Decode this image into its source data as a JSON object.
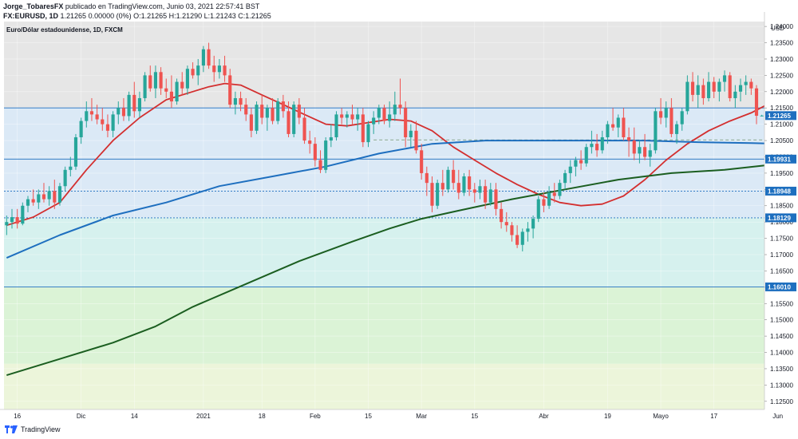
{
  "header": {
    "author": "Jorge_TobaresFX",
    "published": "publicado en TradingView.com, Junio 03, 2021 22:57:41 BST",
    "symbol": "FX:EURUSD, 1D",
    "quote": "1.21265 0.00000 (0%) O:1.21265 H:1.21290 L:1.21243 C:1.21265"
  },
  "footer": {
    "brand": "TradingView"
  },
  "colors": {
    "up": "#26a69a",
    "down": "#ef5350",
    "ema_red": "#d32f2f",
    "ma_blue": "#1e6fbf",
    "ma_green": "#1b5e20",
    "zone_grey": "#e6e6e6",
    "zone_blue": "#dbe9f6",
    "zone_teal": "#d6f1ee",
    "zone_green": "#dbf3d6",
    "zone_yellow": "#ecf5da"
  },
  "chart_data": {
    "type": "candlestick",
    "title": "Euro/Dólar estadounidense, 1D, FXCM",
    "y_axis_title": "USD",
    "ylim": [
      1.1225,
      1.2415
    ],
    "y_ticks": [
      1.125,
      1.13,
      1.135,
      1.14,
      1.145,
      1.15,
      1.155,
      1.16,
      1.165,
      1.17,
      1.175,
      1.18,
      1.185,
      1.19,
      1.195,
      1.2,
      1.205,
      1.21,
      1.215,
      1.22,
      1.225,
      1.23,
      1.235,
      1.24
    ],
    "y_tick_labels": [
      "1.12500",
      "1.13000",
      "1.13500",
      "1.14000",
      "1.14500",
      "1.15000",
      "1.15500",
      "1.16000",
      "1.16500",
      "1.17000",
      "1.17500",
      "1.18000",
      "1.18500",
      "1.19000",
      "1.19500",
      "1.20000",
      "1.20500",
      "1.21000",
      "1.21500",
      "1.22000",
      "1.22500",
      "1.23000",
      "1.23500",
      "1.24000"
    ],
    "x_ticks": [
      {
        "label": "16",
        "i": 2
      },
      {
        "label": "Dic",
        "i": 14
      },
      {
        "label": "14",
        "i": 24
      },
      {
        "label": "2021",
        "i": 37
      },
      {
        "label": "18",
        "i": 48
      },
      {
        "label": "Feb",
        "i": 58
      },
      {
        "label": "15",
        "i": 68
      },
      {
        "label": "Mar",
        "i": 78
      },
      {
        "label": "15",
        "i": 88
      },
      {
        "label": "Abr",
        "i": 101
      },
      {
        "label": "19",
        "i": 113
      },
      {
        "label": "Mayo",
        "i": 123
      },
      {
        "label": "17",
        "i": 133
      },
      {
        "label": "Jun",
        "i": 145
      }
    ],
    "zones": [
      {
        "from": 1.215,
        "to": 1.2415,
        "color": "zone_grey"
      },
      {
        "from": 1.1813,
        "to": 1.215,
        "color": "zone_blue"
      },
      {
        "from": 1.1601,
        "to": 1.1813,
        "color": "zone_teal"
      },
      {
        "from": 1.1365,
        "to": 1.1601,
        "color": "zone_green"
      },
      {
        "from": 1.1225,
        "to": 1.1365,
        "color": "zone_yellow"
      }
    ],
    "hlines": [
      {
        "y": 1.215,
        "style": "solid"
      },
      {
        "y": 1.19931,
        "style": "solid",
        "label": "1.19931"
      },
      {
        "y": 1.18948,
        "style": "dotted",
        "label": "1.18948"
      },
      {
        "y": 1.18129,
        "style": "dotted",
        "label": "1.18129"
      },
      {
        "y": 1.1601,
        "style": "solid",
        "label": "1.16010"
      },
      {
        "y": 1.2052,
        "style": "dashed",
        "from_i": 69,
        "to_i": 146
      }
    ],
    "last_price": {
      "value": 1.21265,
      "label": "1.21265"
    },
    "candles": [
      [
        1.179,
        1.182,
        1.176,
        1.18
      ],
      [
        1.18,
        1.184,
        1.178,
        1.1815
      ],
      [
        1.1815,
        1.184,
        1.178,
        1.1795
      ],
      [
        1.1795,
        1.186,
        1.179,
        1.185
      ],
      [
        1.185,
        1.188,
        1.183,
        1.187
      ],
      [
        1.187,
        1.19,
        1.185,
        1.186
      ],
      [
        1.186,
        1.19,
        1.184,
        1.1885
      ],
      [
        1.1885,
        1.192,
        1.186,
        1.187
      ],
      [
        1.187,
        1.191,
        1.185,
        1.1895
      ],
      [
        1.1895,
        1.193,
        1.184,
        1.186
      ],
      [
        1.186,
        1.192,
        1.185,
        1.191
      ],
      [
        1.191,
        1.197,
        1.1895,
        1.196
      ],
      [
        1.196,
        1.2,
        1.194,
        1.197
      ],
      [
        1.197,
        1.207,
        1.196,
        1.206
      ],
      [
        1.206,
        1.212,
        1.204,
        1.211
      ],
      [
        1.211,
        1.217,
        1.209,
        1.214
      ],
      [
        1.214,
        1.218,
        1.211,
        1.213
      ],
      [
        1.213,
        1.216,
        1.21,
        1.2115
      ],
      [
        1.2115,
        1.215,
        1.208,
        1.21
      ],
      [
        1.21,
        1.213,
        1.206,
        1.208
      ],
      [
        1.208,
        1.214,
        1.206,
        1.213
      ],
      [
        1.213,
        1.217,
        1.21,
        1.215
      ],
      [
        1.215,
        1.218,
        1.211,
        1.2125
      ],
      [
        1.2125,
        1.22,
        1.211,
        1.219
      ],
      [
        1.219,
        1.223,
        1.212,
        1.214
      ],
      [
        1.214,
        1.22,
        1.212,
        1.218
      ],
      [
        1.218,
        1.226,
        1.217,
        1.225
      ],
      [
        1.225,
        1.228,
        1.22,
        1.221
      ],
      [
        1.221,
        1.228,
        1.218,
        1.226
      ],
      [
        1.226,
        1.2275,
        1.219,
        1.221
      ],
      [
        1.221,
        1.224,
        1.218,
        1.22
      ],
      [
        1.22,
        1.225,
        1.215,
        1.217
      ],
      [
        1.217,
        1.224,
        1.216,
        1.223
      ],
      [
        1.223,
        1.226,
        1.219,
        1.221
      ],
      [
        1.221,
        1.228,
        1.219,
        1.227
      ],
      [
        1.227,
        1.229,
        1.224,
        1.225
      ],
      [
        1.225,
        1.23,
        1.222,
        1.228
      ],
      [
        1.228,
        1.234,
        1.226,
        1.233
      ],
      [
        1.233,
        1.235,
        1.227,
        1.228
      ],
      [
        1.228,
        1.231,
        1.223,
        1.226
      ],
      [
        1.226,
        1.23,
        1.224,
        1.228
      ],
      [
        1.228,
        1.231,
        1.223,
        1.225
      ],
      [
        1.225,
        1.227,
        1.215,
        1.216
      ],
      [
        1.216,
        1.22,
        1.213,
        1.218
      ],
      [
        1.218,
        1.22,
        1.214,
        1.216
      ],
      [
        1.216,
        1.218,
        1.211,
        1.213
      ],
      [
        1.213,
        1.215,
        1.206,
        1.208
      ],
      [
        1.208,
        1.217,
        1.207,
        1.216
      ],
      [
        1.216,
        1.219,
        1.21,
        1.212
      ],
      [
        1.212,
        1.216,
        1.208,
        1.215
      ],
      [
        1.215,
        1.218,
        1.21,
        1.211
      ],
      [
        1.211,
        1.218,
        1.21,
        1.217
      ],
      [
        1.217,
        1.219,
        1.212,
        1.214
      ],
      [
        1.214,
        1.217,
        1.206,
        1.207
      ],
      [
        1.207,
        1.217,
        1.206,
        1.216
      ],
      [
        1.216,
        1.218,
        1.21,
        1.212
      ],
      [
        1.212,
        1.215,
        1.204,
        1.205
      ],
      [
        1.205,
        1.208,
        1.201,
        1.204
      ],
      [
        1.204,
        1.206,
        1.197,
        1.199
      ],
      [
        1.199,
        1.202,
        1.195,
        1.196
      ],
      [
        1.196,
        1.206,
        1.195,
        1.205
      ],
      [
        1.205,
        1.21,
        1.203,
        1.206
      ],
      [
        1.206,
        1.214,
        1.205,
        1.213
      ],
      [
        1.213,
        1.215,
        1.21,
        1.212
      ],
      [
        1.212,
        1.214,
        1.209,
        1.213
      ],
      [
        1.213,
        1.216,
        1.21,
        1.2115
      ],
      [
        1.2115,
        1.215,
        1.208,
        1.213
      ],
      [
        1.213,
        1.215,
        1.203,
        1.2045
      ],
      [
        1.2045,
        1.211,
        1.203,
        1.21
      ],
      [
        1.21,
        1.214,
        1.207,
        1.212
      ],
      [
        1.212,
        1.216,
        1.21,
        1.215
      ],
      [
        1.215,
        1.216,
        1.21,
        1.211
      ],
      [
        1.211,
        1.217,
        1.209,
        1.213
      ],
      [
        1.213,
        1.22,
        1.211,
        1.216
      ],
      [
        1.216,
        1.224,
        1.213,
        1.215
      ],
      [
        1.215,
        1.217,
        1.203,
        1.206
      ],
      [
        1.206,
        1.21,
        1.203,
        1.208
      ],
      [
        1.208,
        1.211,
        1.201,
        1.202
      ],
      [
        1.202,
        1.204,
        1.193,
        1.195
      ],
      [
        1.195,
        1.197,
        1.188,
        1.192
      ],
      [
        1.192,
        1.194,
        1.183,
        1.185
      ],
      [
        1.185,
        1.193,
        1.184,
        1.192
      ],
      [
        1.192,
        1.196,
        1.188,
        1.19
      ],
      [
        1.19,
        1.197,
        1.189,
        1.196
      ],
      [
        1.196,
        1.199,
        1.19,
        1.192
      ],
      [
        1.192,
        1.196,
        1.187,
        1.189
      ],
      [
        1.189,
        1.195,
        1.188,
        1.194
      ],
      [
        1.194,
        1.196,
        1.188,
        1.19
      ],
      [
        1.19,
        1.192,
        1.186,
        1.189
      ],
      [
        1.189,
        1.193,
        1.187,
        1.191
      ],
      [
        1.191,
        1.193,
        1.184,
        1.186
      ],
      [
        1.186,
        1.192,
        1.185,
        1.19
      ],
      [
        1.19,
        1.192,
        1.182,
        1.184
      ],
      [
        1.184,
        1.186,
        1.178,
        1.18
      ],
      [
        1.18,
        1.183,
        1.177,
        1.179
      ],
      [
        1.179,
        1.18,
        1.174,
        1.176
      ],
      [
        1.176,
        1.179,
        1.172,
        1.173
      ],
      [
        1.173,
        1.178,
        1.171,
        1.177
      ],
      [
        1.177,
        1.18,
        1.174,
        1.178
      ],
      [
        1.178,
        1.182,
        1.175,
        1.181
      ],
      [
        1.181,
        1.188,
        1.18,
        1.187
      ],
      [
        1.187,
        1.189,
        1.183,
        1.185
      ],
      [
        1.185,
        1.191,
        1.184,
        1.189
      ],
      [
        1.189,
        1.192,
        1.186,
        1.188
      ],
      [
        1.188,
        1.193,
        1.187,
        1.192
      ],
      [
        1.192,
        1.196,
        1.19,
        1.195
      ],
      [
        1.195,
        1.199,
        1.192,
        1.197
      ],
      [
        1.197,
        1.2,
        1.194,
        1.199
      ],
      [
        1.199,
        1.202,
        1.196,
        1.198
      ],
      [
        1.198,
        1.204,
        1.197,
        1.203
      ],
      [
        1.203,
        1.208,
        1.201,
        1.204
      ],
      [
        1.204,
        1.207,
        1.2,
        1.202
      ],
      [
        1.202,
        1.208,
        1.201,
        1.206
      ],
      [
        1.206,
        1.211,
        1.204,
        1.21
      ],
      [
        1.21,
        1.215,
        1.208,
        1.209
      ],
      [
        1.209,
        1.213,
        1.206,
        1.212
      ],
      [
        1.212,
        1.215,
        1.205,
        1.206
      ],
      [
        1.206,
        1.209,
        1.2,
        1.205
      ],
      [
        1.205,
        1.209,
        1.199,
        1.201
      ],
      [
        1.201,
        1.205,
        1.198,
        1.203
      ],
      [
        1.203,
        1.207,
        1.199,
        1.2
      ],
      [
        1.2,
        1.204,
        1.197,
        1.202
      ],
      [
        1.202,
        1.215,
        1.201,
        1.214
      ],
      [
        1.214,
        1.218,
        1.21,
        1.212
      ],
      [
        1.212,
        1.217,
        1.209,
        1.215
      ],
      [
        1.215,
        1.218,
        1.206,
        1.207
      ],
      [
        1.207,
        1.211,
        1.204,
        1.21
      ],
      [
        1.21,
        1.215,
        1.208,
        1.214
      ],
      [
        1.214,
        1.225,
        1.213,
        1.223
      ],
      [
        1.223,
        1.226,
        1.217,
        1.219
      ],
      [
        1.219,
        1.225,
        1.215,
        1.222
      ],
      [
        1.222,
        1.224,
        1.216,
        1.218
      ],
      [
        1.218,
        1.226,
        1.217,
        1.223
      ],
      [
        1.223,
        1.2245,
        1.218,
        1.22
      ],
      [
        1.22,
        1.224,
        1.217,
        1.223
      ],
      [
        1.223,
        1.2265,
        1.22,
        1.225
      ],
      [
        1.225,
        1.226,
        1.217,
        1.218
      ],
      [
        1.218,
        1.222,
        1.215,
        1.22
      ],
      [
        1.22,
        1.224,
        1.217,
        1.222
      ],
      [
        1.222,
        1.225,
        1.219,
        1.223
      ],
      [
        1.223,
        1.224,
        1.219,
        1.221
      ],
      [
        1.221,
        1.222,
        1.21,
        1.2126
      ],
      [
        1.21265,
        1.2129,
        1.21243,
        1.21265
      ]
    ],
    "series": [
      {
        "key": "ema_red",
        "width": 1.8,
        "points": [
          [
            0,
            1.179
          ],
          [
            5,
            1.1815
          ],
          [
            10,
            1.186
          ],
          [
            15,
            1.196
          ],
          [
            20,
            1.205
          ],
          [
            25,
            1.212
          ],
          [
            30,
            1.2175
          ],
          [
            35,
            1.22
          ],
          [
            38,
            1.2215
          ],
          [
            41,
            1.2225
          ],
          [
            44,
            1.222
          ],
          [
            48,
            1.219
          ],
          [
            52,
            1.216
          ],
          [
            56,
            1.213
          ],
          [
            60,
            1.21
          ],
          [
            64,
            1.2095
          ],
          [
            68,
            1.2105
          ],
          [
            72,
            1.2115
          ],
          [
            76,
            1.211
          ],
          [
            80,
            1.208
          ],
          [
            84,
            1.203
          ],
          [
            88,
            1.199
          ],
          [
            92,
            1.195
          ],
          [
            96,
            1.1915
          ],
          [
            100,
            1.1885
          ],
          [
            104,
            1.186
          ],
          [
            108,
            1.185
          ],
          [
            112,
            1.1855
          ],
          [
            116,
            1.188
          ],
          [
            120,
            1.193
          ],
          [
            124,
            1.199
          ],
          [
            128,
            1.204
          ],
          [
            132,
            1.208
          ],
          [
            136,
            1.211
          ],
          [
            140,
            1.2135
          ],
          [
            143,
            1.216
          ],
          [
            146,
            1.217
          ]
        ]
      },
      {
        "key": "ma_blue",
        "width": 2,
        "points": [
          [
            0,
            1.169
          ],
          [
            10,
            1.176
          ],
          [
            20,
            1.182
          ],
          [
            30,
            1.186
          ],
          [
            40,
            1.191
          ],
          [
            50,
            1.194
          ],
          [
            60,
            1.197
          ],
          [
            70,
            1.201
          ],
          [
            80,
            1.204
          ],
          [
            90,
            1.205
          ],
          [
            100,
            1.205
          ],
          [
            110,
            1.205
          ],
          [
            120,
            1.205
          ],
          [
            130,
            1.2045
          ],
          [
            140,
            1.2042
          ],
          [
            146,
            1.204
          ]
        ]
      },
      {
        "key": "ma_green",
        "width": 2,
        "points": [
          [
            0,
            1.133
          ],
          [
            10,
            1.138
          ],
          [
            20,
            1.143
          ],
          [
            28,
            1.148
          ],
          [
            35,
            1.154
          ],
          [
            45,
            1.161
          ],
          [
            55,
            1.168
          ],
          [
            65,
            1.174
          ],
          [
            72,
            1.178
          ],
          [
            78,
            1.181
          ],
          [
            85,
            1.1835
          ],
          [
            95,
            1.187
          ],
          [
            105,
            1.19
          ],
          [
            115,
            1.193
          ],
          [
            125,
            1.195
          ],
          [
            135,
            1.196
          ],
          [
            146,
            1.198
          ]
        ]
      }
    ]
  }
}
